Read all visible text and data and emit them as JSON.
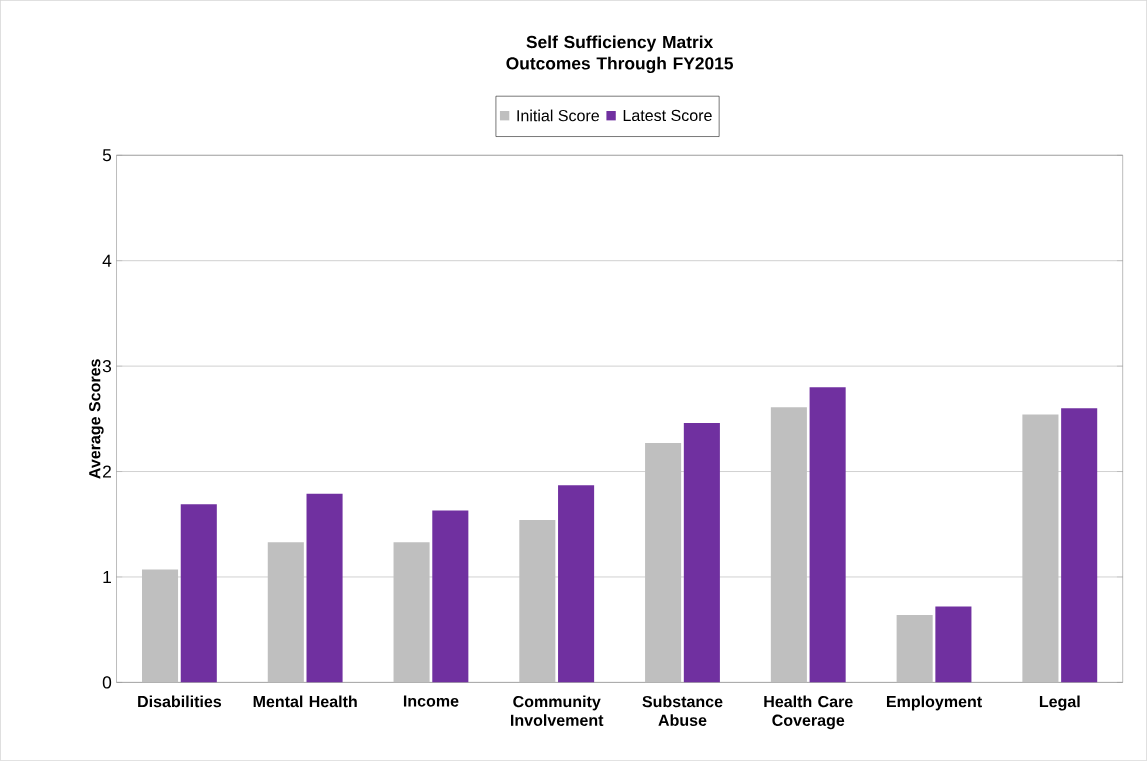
{
  "chart_data": {
    "type": "bar",
    "title": "Self Sufficiency Matrix Outcomes Through FY2015",
    "ylabel": "Average Scores",
    "categories": [
      "Disabilities",
      "Mental Health",
      "Income",
      "Community Involvement",
      "Substance Abuse",
      "Health Care Coverage",
      "Employment",
      "Legal"
    ],
    "series": [
      {
        "name": "Initial Score",
        "color": "#bfbfbf",
        "values": [
          1.07,
          1.33,
          1.33,
          1.54,
          2.27,
          2.61,
          0.64,
          2.54
        ]
      },
      {
        "name": "Latest Score",
        "color": "#7030a0",
        "values": [
          1.69,
          1.79,
          1.63,
          1.87,
          2.46,
          2.8,
          0.72,
          2.6
        ]
      }
    ],
    "ylim": [
      0,
      5
    ],
    "yticks": [
      0,
      1,
      2,
      3,
      4,
      5
    ],
    "grid": "y",
    "legend": "top"
  }
}
